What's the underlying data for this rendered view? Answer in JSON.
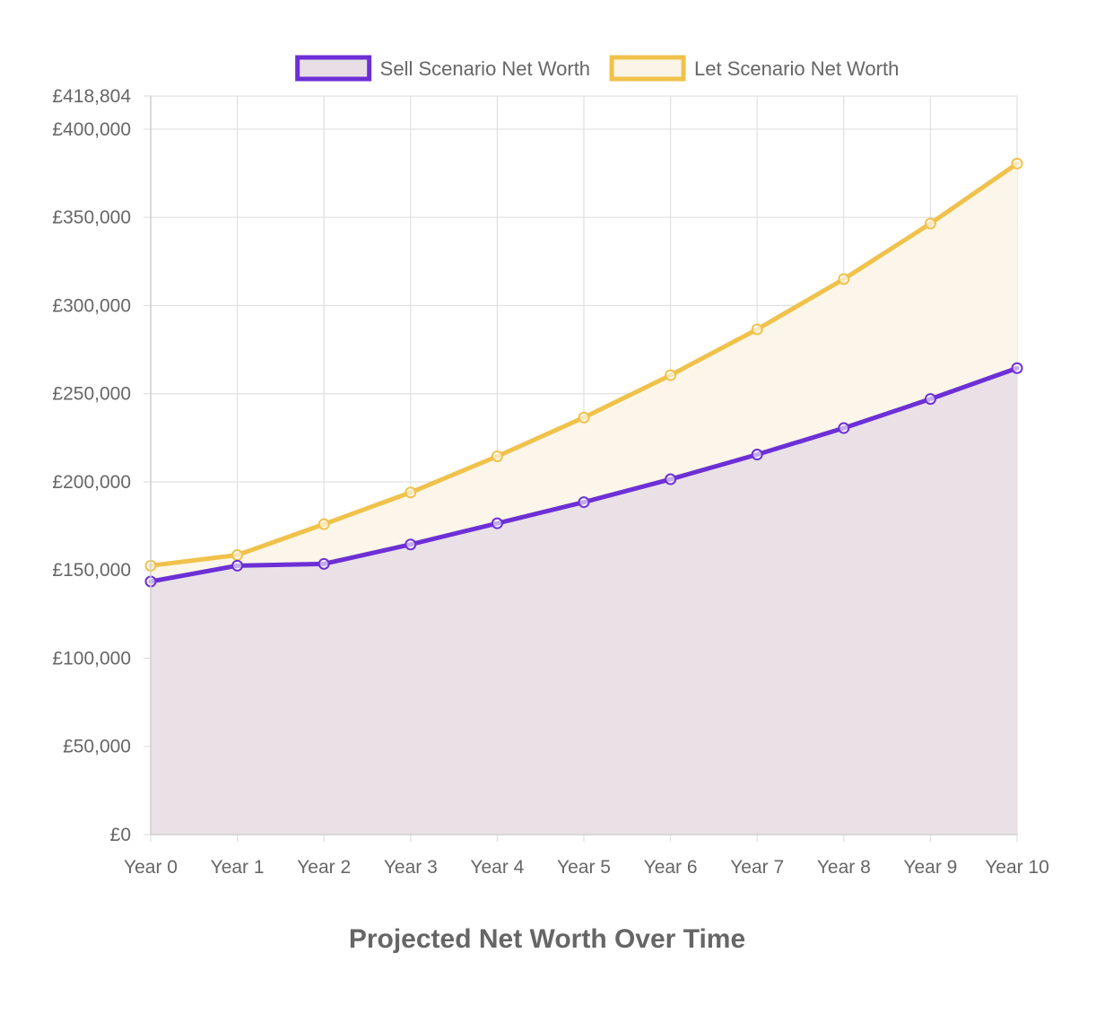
{
  "chart_data": {
    "type": "line",
    "title": "Projected Net Worth Over Time",
    "xlabel": "",
    "ylabel": "",
    "categories": [
      "Year 0",
      "Year 1",
      "Year 2",
      "Year 3",
      "Year 4",
      "Year 5",
      "Year 6",
      "Year 7",
      "Year 8",
      "Year 9",
      "Year 10"
    ],
    "ylim": [
      0,
      418804
    ],
    "y_ticks": [
      0,
      50000,
      100000,
      150000,
      200000,
      250000,
      300000,
      350000,
      400000,
      418804
    ],
    "y_tick_labels": [
      "£0",
      "£50,000",
      "£100,000",
      "£150,000",
      "£200,000",
      "£250,000",
      "£300,000",
      "£350,000",
      "£400,000",
      "£418,804"
    ],
    "grid": true,
    "legend_position": "top",
    "series": [
      {
        "name": "Sell Scenario Net Worth",
        "color": "#6d2fd6",
        "fill": "#e8dfe6",
        "values": [
          143500,
          152500,
          153500,
          164500,
          176500,
          188500,
          201500,
          215500,
          230500,
          247000,
          264500
        ]
      },
      {
        "name": "Let Scenario Net Worth",
        "color": "#f0c24b",
        "fill": "#fbf5e8",
        "values": [
          152500,
          158500,
          176000,
          194000,
          214500,
          236500,
          260500,
          286500,
          315000,
          346500,
          380500
        ]
      }
    ]
  }
}
